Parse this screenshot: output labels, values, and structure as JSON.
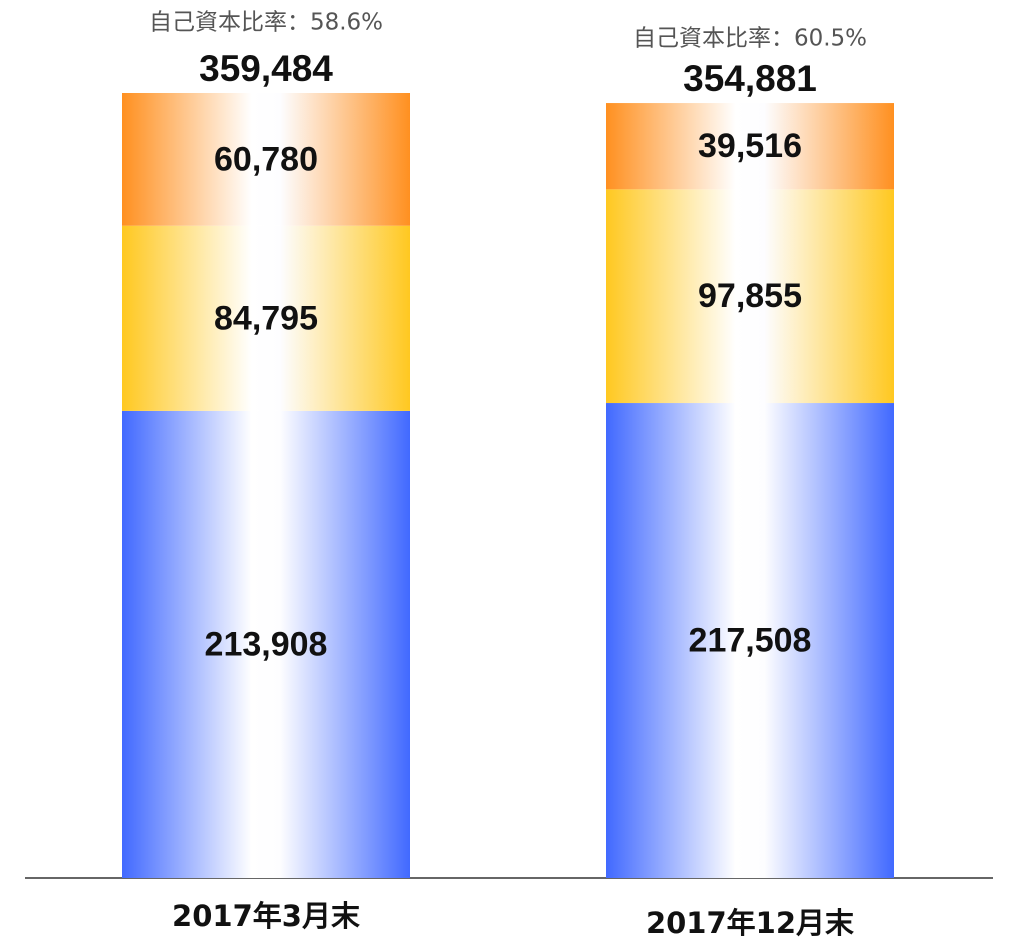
{
  "chart_data": {
    "type": "stacked-bar",
    "categories": [
      "2017年3月末",
      "2017年12月末"
    ],
    "series": [
      {
        "color": "#4169ff",
        "values": [
          213908,
          217508
        ],
        "value_labels": [
          "213,908",
          "217,508"
        ]
      },
      {
        "color": "#ffc820",
        "values": [
          84795,
          97855
        ],
        "value_labels": [
          "84,795",
          "97,855"
        ]
      },
      {
        "color": "#ff9020",
        "values": [
          60780,
          39516
        ],
        "value_labels": [
          "60,780",
          "39,516"
        ]
      }
    ],
    "totals": [
      359484,
      354881
    ],
    "total_labels": [
      "359,484",
      "354,881"
    ],
    "annotations": [
      "自己資本比率：58.6%",
      "自己資本比率：60.5%"
    ]
  }
}
